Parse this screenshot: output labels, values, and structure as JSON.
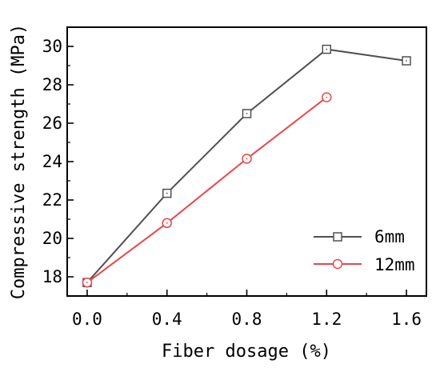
{
  "chart_data": {
    "type": "line",
    "xlabel": "Fiber dosage (%)",
    "ylabel": "Compressive strength (MPa)",
    "x_ticks": [
      "0.0",
      "0.4",
      "0.8",
      "1.2",
      "1.6"
    ],
    "y_ticks": [
      "18",
      "20",
      "22",
      "24",
      "26",
      "28",
      "30"
    ],
    "xlim": [
      -0.1,
      1.7
    ],
    "ylim": [
      17.0,
      31.0
    ],
    "grid": false,
    "legend_position": "bottom-right",
    "series": [
      {
        "name": "6mm",
        "color": "#505050",
        "marker": "square",
        "x": [
          0.0,
          0.4,
          0.8,
          1.2,
          1.6
        ],
        "y": [
          17.7,
          22.35,
          26.5,
          29.85,
          29.25
        ]
      },
      {
        "name": "12mm",
        "color": "#e8474a",
        "marker": "circle",
        "x": [
          0.0,
          0.4,
          0.8,
          1.2
        ],
        "y": [
          17.7,
          20.8,
          24.15,
          27.35
        ]
      }
    ]
  }
}
